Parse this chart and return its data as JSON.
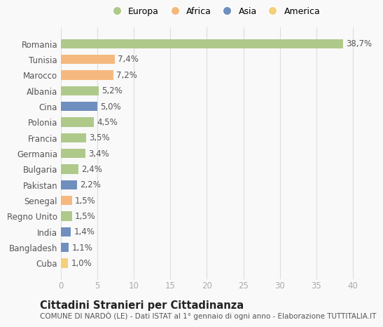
{
  "countries": [
    "Romania",
    "Tunisia",
    "Marocco",
    "Albania",
    "Cina",
    "Polonia",
    "Francia",
    "Germania",
    "Bulgaria",
    "Pakistan",
    "Senegal",
    "Regno Unito",
    "India",
    "Bangladesh",
    "Cuba"
  ],
  "values": [
    38.7,
    7.4,
    7.2,
    5.2,
    5.0,
    4.5,
    3.5,
    3.4,
    2.4,
    2.2,
    1.5,
    1.5,
    1.4,
    1.1,
    1.0
  ],
  "labels": [
    "38,7%",
    "7,4%",
    "7,2%",
    "5,2%",
    "5,0%",
    "4,5%",
    "3,5%",
    "3,4%",
    "2,4%",
    "2,2%",
    "1,5%",
    "1,5%",
    "1,4%",
    "1,1%",
    "1,0%"
  ],
  "continents": [
    "Europa",
    "Africa",
    "Africa",
    "Europa",
    "Asia",
    "Europa",
    "Europa",
    "Europa",
    "Europa",
    "Asia",
    "Africa",
    "Europa",
    "Asia",
    "Asia",
    "America"
  ],
  "colors": {
    "Europa": "#aec98a",
    "Africa": "#f5b97f",
    "Asia": "#6f8fbf",
    "America": "#f5d07a"
  },
  "xlim": [
    0,
    42
  ],
  "xticks": [
    0,
    5,
    10,
    15,
    20,
    25,
    30,
    35,
    40
  ],
  "title": "Cittadini Stranieri per Cittadinanza",
  "subtitle": "COMUNE DI NARDÒ (LE) - Dati ISTAT al 1° gennaio di ogni anno - Elaborazione TUTTITALIA.IT",
  "background_color": "#f9f9f9",
  "grid_color": "#dddddd",
  "bar_height": 0.6,
  "label_fontsize": 8.5,
  "tick_fontsize": 8.5,
  "title_fontsize": 10.5,
  "subtitle_fontsize": 7.5,
  "legend_order": [
    "Europa",
    "Africa",
    "Asia",
    "America"
  ]
}
